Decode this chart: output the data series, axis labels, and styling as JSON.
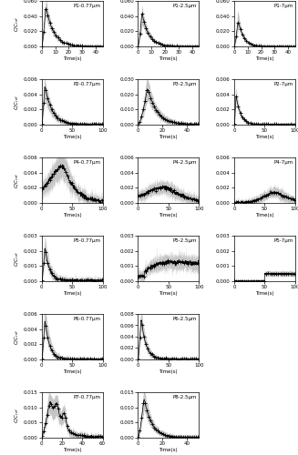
{
  "subplots": [
    {
      "label": "P1-0.77μm",
      "ylim": [
        0,
        0.06
      ],
      "yticks": [
        0.0,
        0.02,
        0.04,
        0.06
      ],
      "xlim": [
        0,
        45
      ],
      "xticks": [
        0,
        10,
        20,
        30,
        40
      ],
      "type": "sharp_decay",
      "peak_time": 3,
      "peak_val": 0.048,
      "decay": 6,
      "noise": 0.0008,
      "spread": 0.015,
      "row": 0,
      "col": 0
    },
    {
      "label": "P1-2.5μm",
      "ylim": [
        0,
        0.06
      ],
      "yticks": [
        0.0,
        0.02,
        0.04,
        0.06
      ],
      "xlim": [
        0,
        45
      ],
      "xticks": [
        0,
        10,
        20,
        30,
        40
      ],
      "type": "sharp_decay",
      "peak_time": 3,
      "peak_val": 0.042,
      "decay": 5,
      "noise": 0.0008,
      "spread": 0.012,
      "row": 0,
      "col": 1
    },
    {
      "label": "P1-7μm",
      "ylim": [
        0,
        0.06
      ],
      "yticks": [
        0.0,
        0.02,
        0.04,
        0.06
      ],
      "xlim": [
        0,
        45
      ],
      "xticks": [
        0,
        10,
        20,
        30,
        40
      ],
      "type": "sharp_decay",
      "peak_time": 3,
      "peak_val": 0.038,
      "decay": 4,
      "noise": 0.0006,
      "spread": 0.01,
      "row": 0,
      "col": 2
    },
    {
      "label": "P2-0.77μm",
      "ylim": [
        0,
        0.006
      ],
      "yticks": [
        0.0,
        0.002,
        0.004,
        0.006
      ],
      "xlim": [
        0,
        100
      ],
      "xticks": [
        0,
        50,
        100
      ],
      "type": "sharp_decay",
      "peak_time": 5,
      "peak_val": 0.0048,
      "decay": 12,
      "noise": 0.00015,
      "spread": 0.0008,
      "row": 1,
      "col": 0
    },
    {
      "label": "P3-2.5μm",
      "ylim": [
        0,
        0.03
      ],
      "yticks": [
        0.0,
        0.01,
        0.02,
        0.03
      ],
      "xlim": [
        0,
        50
      ],
      "xticks": [
        0,
        20,
        40
      ],
      "type": "sharp_decay",
      "peak_time": 8,
      "peak_val": 0.025,
      "decay": 8,
      "noise": 0.0008,
      "spread": 0.004,
      "row": 1,
      "col": 1
    },
    {
      "label": "P2-7μm",
      "ylim": [
        0,
        0.006
      ],
      "yticks": [
        0.0,
        0.002,
        0.004,
        0.006
      ],
      "xlim": [
        0,
        100
      ],
      "xticks": [
        0,
        50,
        100
      ],
      "type": "sharp_decay",
      "peak_time": 3,
      "peak_val": 0.0038,
      "decay": 7,
      "noise": 0.0001,
      "spread": 0.0005,
      "row": 1,
      "col": 2
    },
    {
      "label": "P4-0.77μm",
      "ylim": [
        0,
        0.006
      ],
      "yticks": [
        0.0,
        0.002,
        0.004,
        0.006
      ],
      "xlim": [
        0,
        100
      ],
      "xticks": [
        0,
        50,
        100
      ],
      "type": "broad_hump",
      "peak_time": 38,
      "peak_val": 0.0048,
      "rise": 25,
      "decay": 20,
      "noise": 0.0004,
      "spread": 0.001,
      "row": 2,
      "col": 0
    },
    {
      "label": "P4-2.5μm",
      "ylim": [
        0,
        0.006
      ],
      "yticks": [
        0.0,
        0.002,
        0.004,
        0.006
      ],
      "xlim": [
        0,
        100
      ],
      "xticks": [
        0,
        50,
        100
      ],
      "type": "broad_hump",
      "peak_time": 50,
      "peak_val": 0.0022,
      "rise": 35,
      "decay": 30,
      "noise": 0.0003,
      "spread": 0.0006,
      "row": 2,
      "col": 1
    },
    {
      "label": "P4-7μm",
      "ylim": [
        0,
        0.006
      ],
      "yticks": [
        0.0,
        0.002,
        0.004,
        0.006
      ],
      "xlim": [
        0,
        100
      ],
      "xticks": [
        0,
        50,
        100
      ],
      "type": "broad_hump",
      "peak_time": 70,
      "peak_val": 0.0015,
      "rise": 20,
      "decay": 20,
      "noise": 0.0002,
      "spread": 0.0004,
      "row": 2,
      "col": 2
    },
    {
      "label": "P5-0.77μm",
      "ylim": [
        0,
        0.003
      ],
      "yticks": [
        0.0,
        0.001,
        0.002,
        0.003
      ],
      "xlim": [
        0,
        100
      ],
      "xticks": [
        0,
        50,
        100
      ],
      "type": "sharp_decay",
      "peak_time": 5,
      "peak_val": 0.0022,
      "decay": 8,
      "noise": 0.00012,
      "spread": 0.0004,
      "row": 3,
      "col": 0
    },
    {
      "label": "P5-2.5μm",
      "ylim": [
        0,
        0.003
      ],
      "yticks": [
        0.0,
        0.001,
        0.002,
        0.003
      ],
      "xlim": [
        0,
        100
      ],
      "xticks": [
        0,
        50,
        100
      ],
      "type": "flat_noise",
      "peak_time": 10,
      "peak_val": 0.001,
      "decay": 200,
      "noise": 0.0002,
      "spread": 0.0003,
      "row": 3,
      "col": 1
    },
    {
      "label": "P5-7μm",
      "ylim": [
        0,
        0.003
      ],
      "yticks": [
        0.0,
        0.001,
        0.002,
        0.003
      ],
      "xlim": [
        0,
        100
      ],
      "xticks": [
        0,
        50,
        100
      ],
      "type": "flat_noise_late",
      "peak_time": 60,
      "peak_val": 0.0005,
      "decay": 100,
      "noise": 8e-05,
      "spread": 0.0001,
      "row": 3,
      "col": 2
    },
    {
      "label": "P6-0.77μm",
      "ylim": [
        0,
        0.006
      ],
      "yticks": [
        0.0,
        0.002,
        0.004,
        0.006
      ],
      "xlim": [
        0,
        100
      ],
      "xticks": [
        0,
        50,
        100
      ],
      "type": "sharp_decay",
      "peak_time": 5,
      "peak_val": 0.0055,
      "decay": 8,
      "noise": 0.00015,
      "spread": 0.001,
      "row": 4,
      "col": 0
    },
    {
      "label": "P6-2.5μm",
      "ylim": [
        0,
        0.008
      ],
      "yticks": [
        0.0,
        0.002,
        0.004,
        0.006,
        0.008
      ],
      "xlim": [
        0,
        100
      ],
      "xticks": [
        0,
        50,
        100
      ],
      "type": "sharp_decay",
      "peak_time": 5,
      "peak_val": 0.007,
      "decay": 8,
      "noise": 0.0002,
      "spread": 0.0012,
      "row": 4,
      "col": 1
    },
    {
      "label": "P7-0.77μm",
      "ylim": [
        0,
        0.015
      ],
      "yticks": [
        0.0,
        0.005,
        0.01,
        0.015
      ],
      "xlim": [
        0,
        60
      ],
      "xticks": [
        0,
        20,
        40,
        60
      ],
      "type": "multi_peak",
      "peak_time": 8,
      "peak_val": 0.012,
      "decay": 10,
      "noise": 0.0006,
      "spread": 0.003,
      "row": 5,
      "col": 0
    },
    {
      "label": "P8-2.5μm",
      "ylim": [
        0,
        0.015
      ],
      "yticks": [
        0.0,
        0.005,
        0.01,
        0.015
      ],
      "xlim": [
        0,
        50
      ],
      "xticks": [
        0,
        20,
        40
      ],
      "type": "sharp_decay",
      "peak_time": 5,
      "peak_val": 0.013,
      "decay": 6,
      "noise": 0.0004,
      "spread": 0.003,
      "row": 5,
      "col": 1
    }
  ],
  "ylabel": "C/C_ref",
  "xlabel": "Time(s)",
  "background_color": "#ffffff",
  "line_color": "#000000",
  "fill_color": "#bbbbbb"
}
